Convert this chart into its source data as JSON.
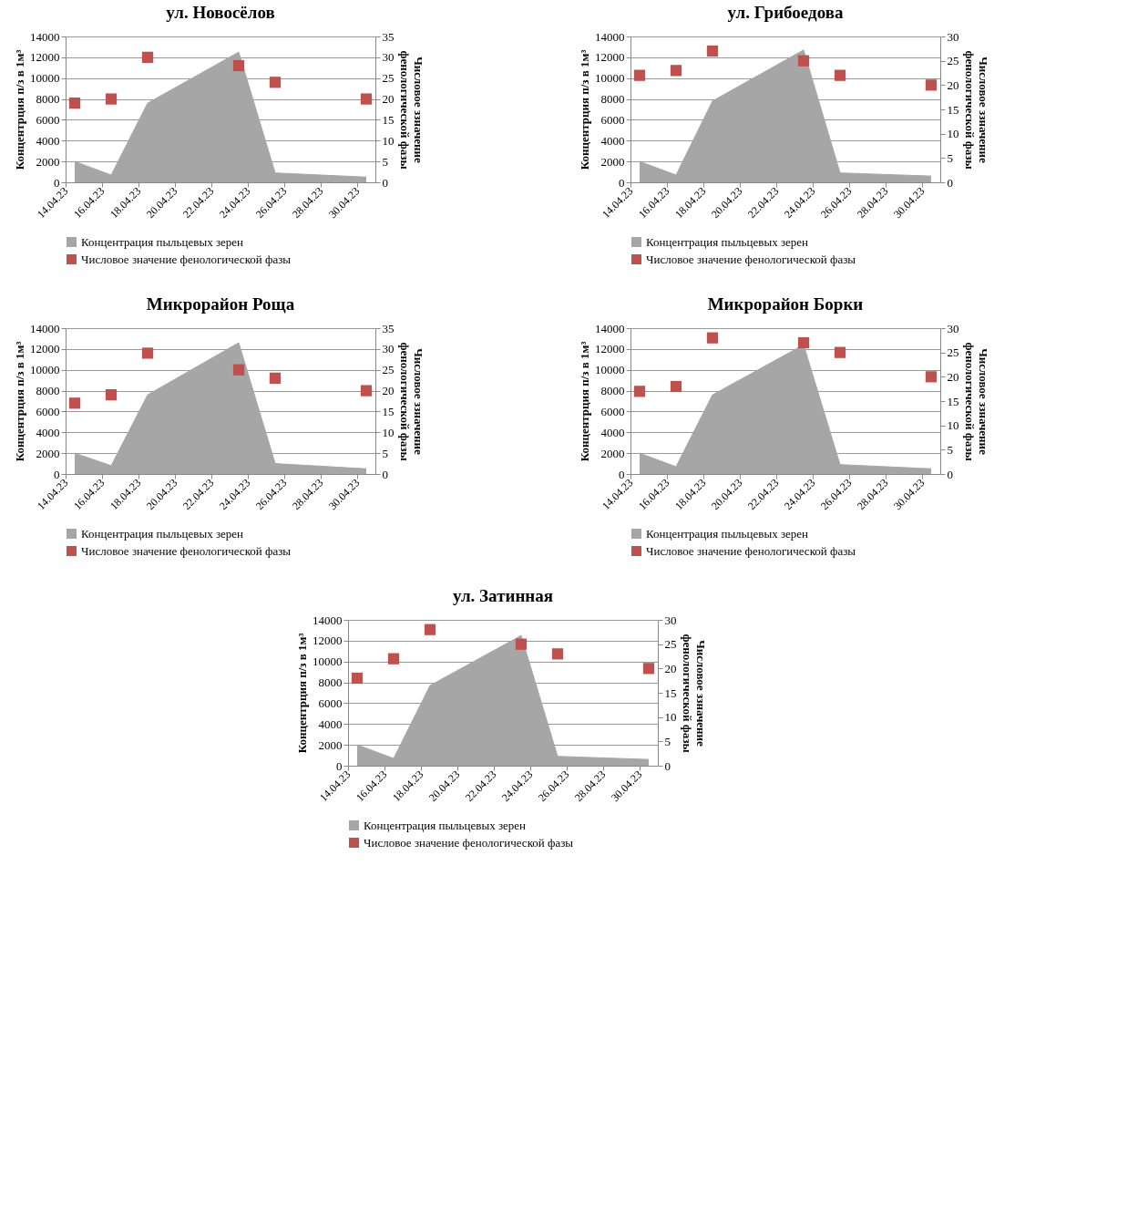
{
  "chart_data": [
    {
      "type": "area",
      "title": "ул. Новосёлов",
      "ylabel": "Концентрция п/з в 1м³",
      "y2label": "Числовое ззначение фенологической фазы",
      "x": [
        "--04-14T12:00",
        "--04-16T12:00",
        "--04-18T12:00",
        "--04-23T12:00",
        "--04-25T12:00",
        "--04-30T12:00"
      ],
      "xlim": [
        "--04-14",
        "--05-01"
      ],
      "xticks": [
        {
          "value": "--04-14",
          "label": "14.04.23"
        },
        {
          "value": "--04-16",
          "label": "16.04.23"
        },
        {
          "value": "--04-18",
          "label": "18.04.23"
        },
        {
          "value": "--04-20",
          "label": "20.04.23"
        },
        {
          "value": "--04-22",
          "label": "22.04.23"
        },
        {
          "value": "--04-24",
          "label": "24.04.23"
        },
        {
          "value": "--04-26",
          "label": "26.04.23"
        },
        {
          "value": "--04-28",
          "label": "28.04.23"
        },
        {
          "value": "--04-30",
          "label": "30.04.23"
        }
      ],
      "ylim": [
        0,
        14000
      ],
      "yticks": [
        0,
        2000,
        4000,
        6000,
        8000,
        10000,
        12000,
        14000
      ],
      "y2lim": [
        0,
        35
      ],
      "y2ticks": [
        0,
        5,
        10,
        15,
        20,
        25,
        30,
        35
      ],
      "grid": "y",
      "legend": "bottom",
      "series": [
        {
          "name": "Концентрация пыльцевых зерен",
          "color": "#a6a6a6",
          "values": [
            2000,
            700,
            7600,
            12500,
            900,
            500
          ]
        },
        {
          "name": "Числовое значение фенологической фазы",
          "type": "scatter",
          "marker": "square",
          "axis": "y2",
          "color": "#c0504d",
          "values": [
            19,
            20,
            30,
            28,
            24,
            20
          ]
        }
      ]
    },
    {
      "type": "area",
      "title": "ул. Грибоедова",
      "ylabel": "Концентрция п/з в 1м³",
      "y2label": "Числовое ззначение фенологической фазы",
      "x": [
        "--04-14T12:00",
        "--04-16T12:00",
        "--04-18T12:00",
        "--04-23T12:00",
        "--04-25T12:00",
        "--04-30T12:00"
      ],
      "xlim": [
        "--04-14",
        "--05-01"
      ],
      "xticks": [
        {
          "value": "--04-14",
          "label": "14.04.23"
        },
        {
          "value": "--04-16",
          "label": "16.04.23"
        },
        {
          "value": "--04-18",
          "label": "18.04.23"
        },
        {
          "value": "--04-20",
          "label": "20.04.23"
        },
        {
          "value": "--04-22",
          "label": "22.04.23"
        },
        {
          "value": "--04-24",
          "label": "24.04.23"
        },
        {
          "value": "--04-26",
          "label": "26.04.23"
        },
        {
          "value": "--04-28",
          "label": "28.04.23"
        },
        {
          "value": "--04-30",
          "label": "30.04.23"
        }
      ],
      "ylim": [
        0,
        14000
      ],
      "yticks": [
        0,
        2000,
        4000,
        6000,
        8000,
        10000,
        12000,
        14000
      ],
      "y2lim": [
        0,
        30
      ],
      "y2ticks": [
        0,
        5,
        10,
        15,
        20,
        25,
        30
      ],
      "grid": "y",
      "legend": "bottom",
      "series": [
        {
          "name": "Концентрация пыльцевых зерен",
          "color": "#a6a6a6",
          "values": [
            2000,
            700,
            7800,
            12700,
            900,
            600
          ]
        },
        {
          "name": "Числовое значение фенологической фазы",
          "type": "scatter",
          "marker": "square",
          "axis": "y2",
          "color": "#c0504d",
          "values": [
            22,
            23,
            27,
            25,
            22,
            20
          ]
        }
      ]
    },
    {
      "type": "area",
      "title": "Микрорайон Роща",
      "ylabel": "Концентрция п/з в 1м³",
      "y2label": "Числовое ззначение фенологической фазы",
      "x": [
        "--04-14T12:00",
        "--04-16T12:00",
        "--04-18T12:00",
        "--04-23T12:00",
        "--04-25T12:00",
        "--04-30T12:00"
      ],
      "xlim": [
        "--04-14",
        "--05-01"
      ],
      "xticks": [
        {
          "value": "--04-14",
          "label": "14.04.23"
        },
        {
          "value": "--04-16",
          "label": "16.04.23"
        },
        {
          "value": "--04-18",
          "label": "18.04.23"
        },
        {
          "value": "--04-20",
          "label": "20.04.23"
        },
        {
          "value": "--04-22",
          "label": "22.04.23"
        },
        {
          "value": "--04-24",
          "label": "24.04.23"
        },
        {
          "value": "--04-26",
          "label": "26.04.23"
        },
        {
          "value": "--04-28",
          "label": "28.04.23"
        },
        {
          "value": "--04-30",
          "label": "30.04.23"
        }
      ],
      "ylim": [
        0,
        14000
      ],
      "yticks": [
        0,
        2000,
        4000,
        6000,
        8000,
        10000,
        12000,
        14000
      ],
      "y2lim": [
        0,
        35
      ],
      "y2ticks": [
        0,
        5,
        10,
        15,
        20,
        25,
        30,
        35
      ],
      "grid": "y",
      "legend": "bottom",
      "series": [
        {
          "name": "Концентрация пыльцевых зерен",
          "color": "#a6a6a6",
          "values": [
            2000,
            800,
            7600,
            12600,
            1000,
            500
          ]
        },
        {
          "name": "Числовое значение фенологической фазы",
          "type": "scatter",
          "marker": "square",
          "axis": "y2",
          "color": "#c0504d",
          "values": [
            17,
            19,
            29,
            25,
            23,
            20
          ]
        }
      ]
    },
    {
      "type": "area",
      "title": "Микрорайон Борки",
      "ylabel": "Концентрция п/з в 1м³",
      "y2label": "Числовое ззначение фенологической фазы",
      "x": [
        "--04-14T12:00",
        "--04-16T12:00",
        "--04-18T12:00",
        "--04-23T12:00",
        "--04-25T12:00",
        "--04-30T12:00"
      ],
      "xlim": [
        "--04-14",
        "--05-01"
      ],
      "xticks": [
        {
          "value": "--04-14",
          "label": "14.04.23"
        },
        {
          "value": "--04-16",
          "label": "16.04.23"
        },
        {
          "value": "--04-18",
          "label": "18.04.23"
        },
        {
          "value": "--04-20",
          "label": "20.04.23"
        },
        {
          "value": "--04-22",
          "label": "22.04.23"
        },
        {
          "value": "--04-24",
          "label": "24.04.23"
        },
        {
          "value": "--04-26",
          "label": "26.04.23"
        },
        {
          "value": "--04-28",
          "label": "28.04.23"
        },
        {
          "value": "--04-30",
          "label": "30.04.23"
        }
      ],
      "ylim": [
        0,
        14000
      ],
      "yticks": [
        0,
        2000,
        4000,
        6000,
        8000,
        10000,
        12000,
        14000
      ],
      "y2lim": [
        0,
        30
      ],
      "y2ticks": [
        0,
        5,
        10,
        15,
        20,
        25,
        30
      ],
      "grid": "y",
      "legend": "bottom",
      "series": [
        {
          "name": "Концентрация пыльцевых зерен",
          "color": "#a6a6a6",
          "values": [
            2000,
            700,
            7600,
            12400,
            900,
            500
          ]
        },
        {
          "name": "Числовое значение фенологической фазы",
          "type": "scatter",
          "marker": "square",
          "axis": "y2",
          "color": "#c0504d",
          "values": [
            17,
            18,
            28,
            27,
            25,
            20
          ]
        }
      ]
    },
    {
      "type": "area",
      "title": "ул. Затинная",
      "ylabel": "Концентрция п/з в 1м³",
      "y2label": "Числовое ззначение фенологической фазы",
      "x": [
        "--04-14T12:00",
        "--04-16T12:00",
        "--04-18T12:00",
        "--04-23T12:00",
        "--04-25T12:00",
        "--04-30T12:00"
      ],
      "xlim": [
        "--04-14",
        "--05-01"
      ],
      "xticks": [
        {
          "value": "--04-14",
          "label": "14.04.23"
        },
        {
          "value": "--04-16",
          "label": "16.04.23"
        },
        {
          "value": "--04-18",
          "label": "18.04.23"
        },
        {
          "value": "--04-20",
          "label": "20.04.23"
        },
        {
          "value": "--04-22",
          "label": "22.04.23"
        },
        {
          "value": "--04-24",
          "label": "24.04.23"
        },
        {
          "value": "--04-26",
          "label": "26.04.23"
        },
        {
          "value": "--04-28",
          "label": "28.04.23"
        },
        {
          "value": "--04-30",
          "label": "30.04.23"
        }
      ],
      "ylim": [
        0,
        14000
      ],
      "yticks": [
        0,
        2000,
        4000,
        6000,
        8000,
        10000,
        12000,
        14000
      ],
      "y2lim": [
        0,
        30
      ],
      "y2ticks": [
        0,
        5,
        10,
        15,
        20,
        25,
        30
      ],
      "grid": "y",
      "legend": "bottom",
      "series": [
        {
          "name": "Концентрация пыльцевых зерен",
          "color": "#a6a6a6",
          "values": [
            2000,
            700,
            7700,
            12500,
            900,
            600
          ]
        },
        {
          "name": "Числовое значение фенологической фазы",
          "type": "scatter",
          "marker": "square",
          "axis": "y2",
          "color": "#c0504d",
          "values": [
            18,
            22,
            28,
            25,
            23,
            20
          ]
        }
      ]
    }
  ]
}
